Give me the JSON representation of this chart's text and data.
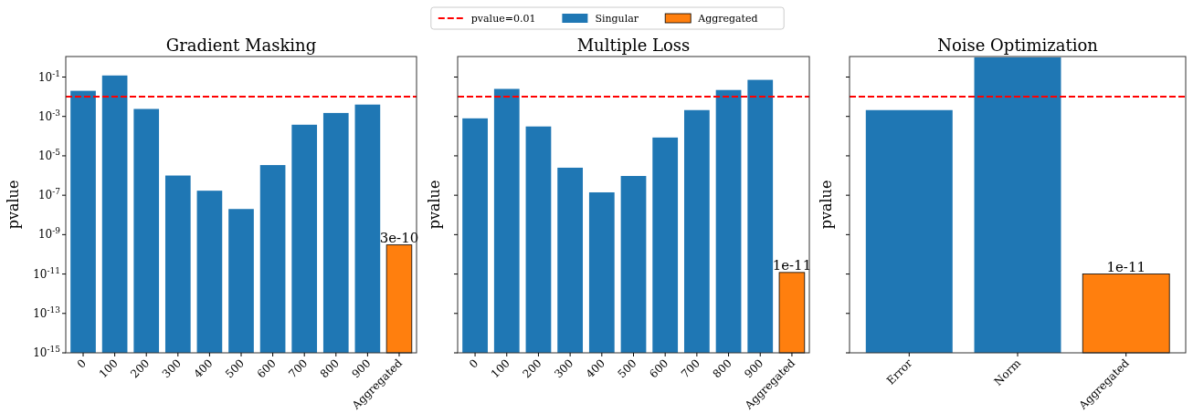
{
  "chart_data": [
    {
      "type": "bar",
      "title": "Gradient Masking",
      "ylabel": "pvalue",
      "categories": [
        "0",
        "100",
        "200",
        "300",
        "400",
        "500",
        "600",
        "700",
        "800",
        "900",
        "Aggregated"
      ],
      "series": [
        {
          "name": "Singular",
          "color": "#1f77b4",
          "values": [
            0.02,
            0.12,
            0.0024,
            1e-06,
            1.7e-07,
            2e-08,
            3.4e-06,
            0.00038,
            0.0015,
            0.004,
            null
          ]
        },
        {
          "name": "Aggregated",
          "color": "#ff7f0e",
          "values": [
            null,
            null,
            null,
            null,
            null,
            null,
            null,
            null,
            null,
            null,
            3e-10
          ],
          "value_labels": [
            null,
            null,
            null,
            null,
            null,
            null,
            null,
            null,
            null,
            null,
            "3e-10"
          ]
        }
      ],
      "log": true,
      "ylim": [
        1e-15,
        1.1
      ],
      "yticks": [
        {
          "value": 1e-15,
          "label": "10$^{-15}$"
        },
        {
          "value": 1e-13,
          "label": "10$^{-13}$"
        },
        {
          "value": 1e-11,
          "label": "10$^{-11}$"
        },
        {
          "value": 1e-09,
          "label": "10$^{-9}$"
        },
        {
          "value": 1e-07,
          "label": "10$^{-7}$"
        },
        {
          "value": 1e-05,
          "label": "10$^{-5}$"
        },
        {
          "value": 0.001,
          "label": "10$^{-3}$"
        },
        {
          "value": 0.1,
          "label": "10$^{-1}$"
        }
      ],
      "ref_lines": [
        {
          "axis": "y",
          "value": 0.01,
          "label": "pvalue=0.01",
          "color": "#ff0000",
          "line_style": "dashed"
        }
      ],
      "legend": "top"
    },
    {
      "type": "bar",
      "title": "Multiple Loss",
      "ylabel": "pvalue",
      "categories": [
        "0",
        "100",
        "200",
        "300",
        "400",
        "500",
        "600",
        "700",
        "800",
        "900",
        "Aggregated"
      ],
      "series": [
        {
          "color": "#1f77b4",
          "values": [
            0.0008,
            0.025,
            0.00031,
            2.5e-06,
            1.4e-07,
            9.5e-07,
            8.5e-05,
            0.0021,
            0.022,
            0.072,
            null
          ]
        },
        {
          "color": "#ff7f0e",
          "values": [
            null,
            null,
            null,
            null,
            null,
            null,
            null,
            null,
            null,
            null,
            1.2e-11
          ],
          "value_labels": [
            null,
            null,
            null,
            null,
            null,
            null,
            null,
            null,
            null,
            null,
            "1e-11"
          ]
        }
      ],
      "log": true,
      "ylim": [
        1e-15,
        1.1
      ],
      "yticks": [
        {
          "value": 1e-15,
          "label": null
        },
        {
          "value": 1e-13,
          "label": null
        },
        {
          "value": 1e-11,
          "label": null
        },
        {
          "value": 1e-09,
          "label": null
        },
        {
          "value": 1e-07,
          "label": null
        },
        {
          "value": 1e-05,
          "label": null
        },
        {
          "value": 0.001,
          "label": null
        },
        {
          "value": 0.1,
          "label": null
        }
      ],
      "ref_lines": [
        {
          "axis": "y",
          "value": 0.01,
          "color": "#ff0000",
          "line_style": "dashed"
        }
      ],
      "tick_labels": "x"
    },
    {
      "type": "bar",
      "title": "Noise Optimization",
      "ylabel": "pvalue",
      "categories": [
        "Error",
        "Norm",
        "Aggregated"
      ],
      "series": [
        {
          "color": "#1f77b4",
          "values": [
            0.0021,
            1,
            null
          ]
        },
        {
          "color": "#ff7f0e",
          "values": [
            null,
            null,
            1e-11
          ],
          "value_labels": [
            null,
            null,
            "1e-11"
          ]
        }
      ],
      "log": true,
      "ylim": [
        1e-15,
        1.1
      ],
      "yticks": [
        {
          "value": 1e-15,
          "label": null
        },
        {
          "value": 1e-13,
          "label": null
        },
        {
          "value": 1e-11,
          "label": null
        },
        {
          "value": 1e-09,
          "label": null
        },
        {
          "value": 1e-07,
          "label": null
        },
        {
          "value": 1e-05,
          "label": null
        },
        {
          "value": 0.001,
          "label": null
        },
        {
          "value": 0.1,
          "label": null
        }
      ],
      "ref_lines": [
        {
          "axis": "y",
          "value": 0.01,
          "color": "#ff0000",
          "line_style": "dashed"
        }
      ],
      "tick_labels": "x"
    }
  ]
}
